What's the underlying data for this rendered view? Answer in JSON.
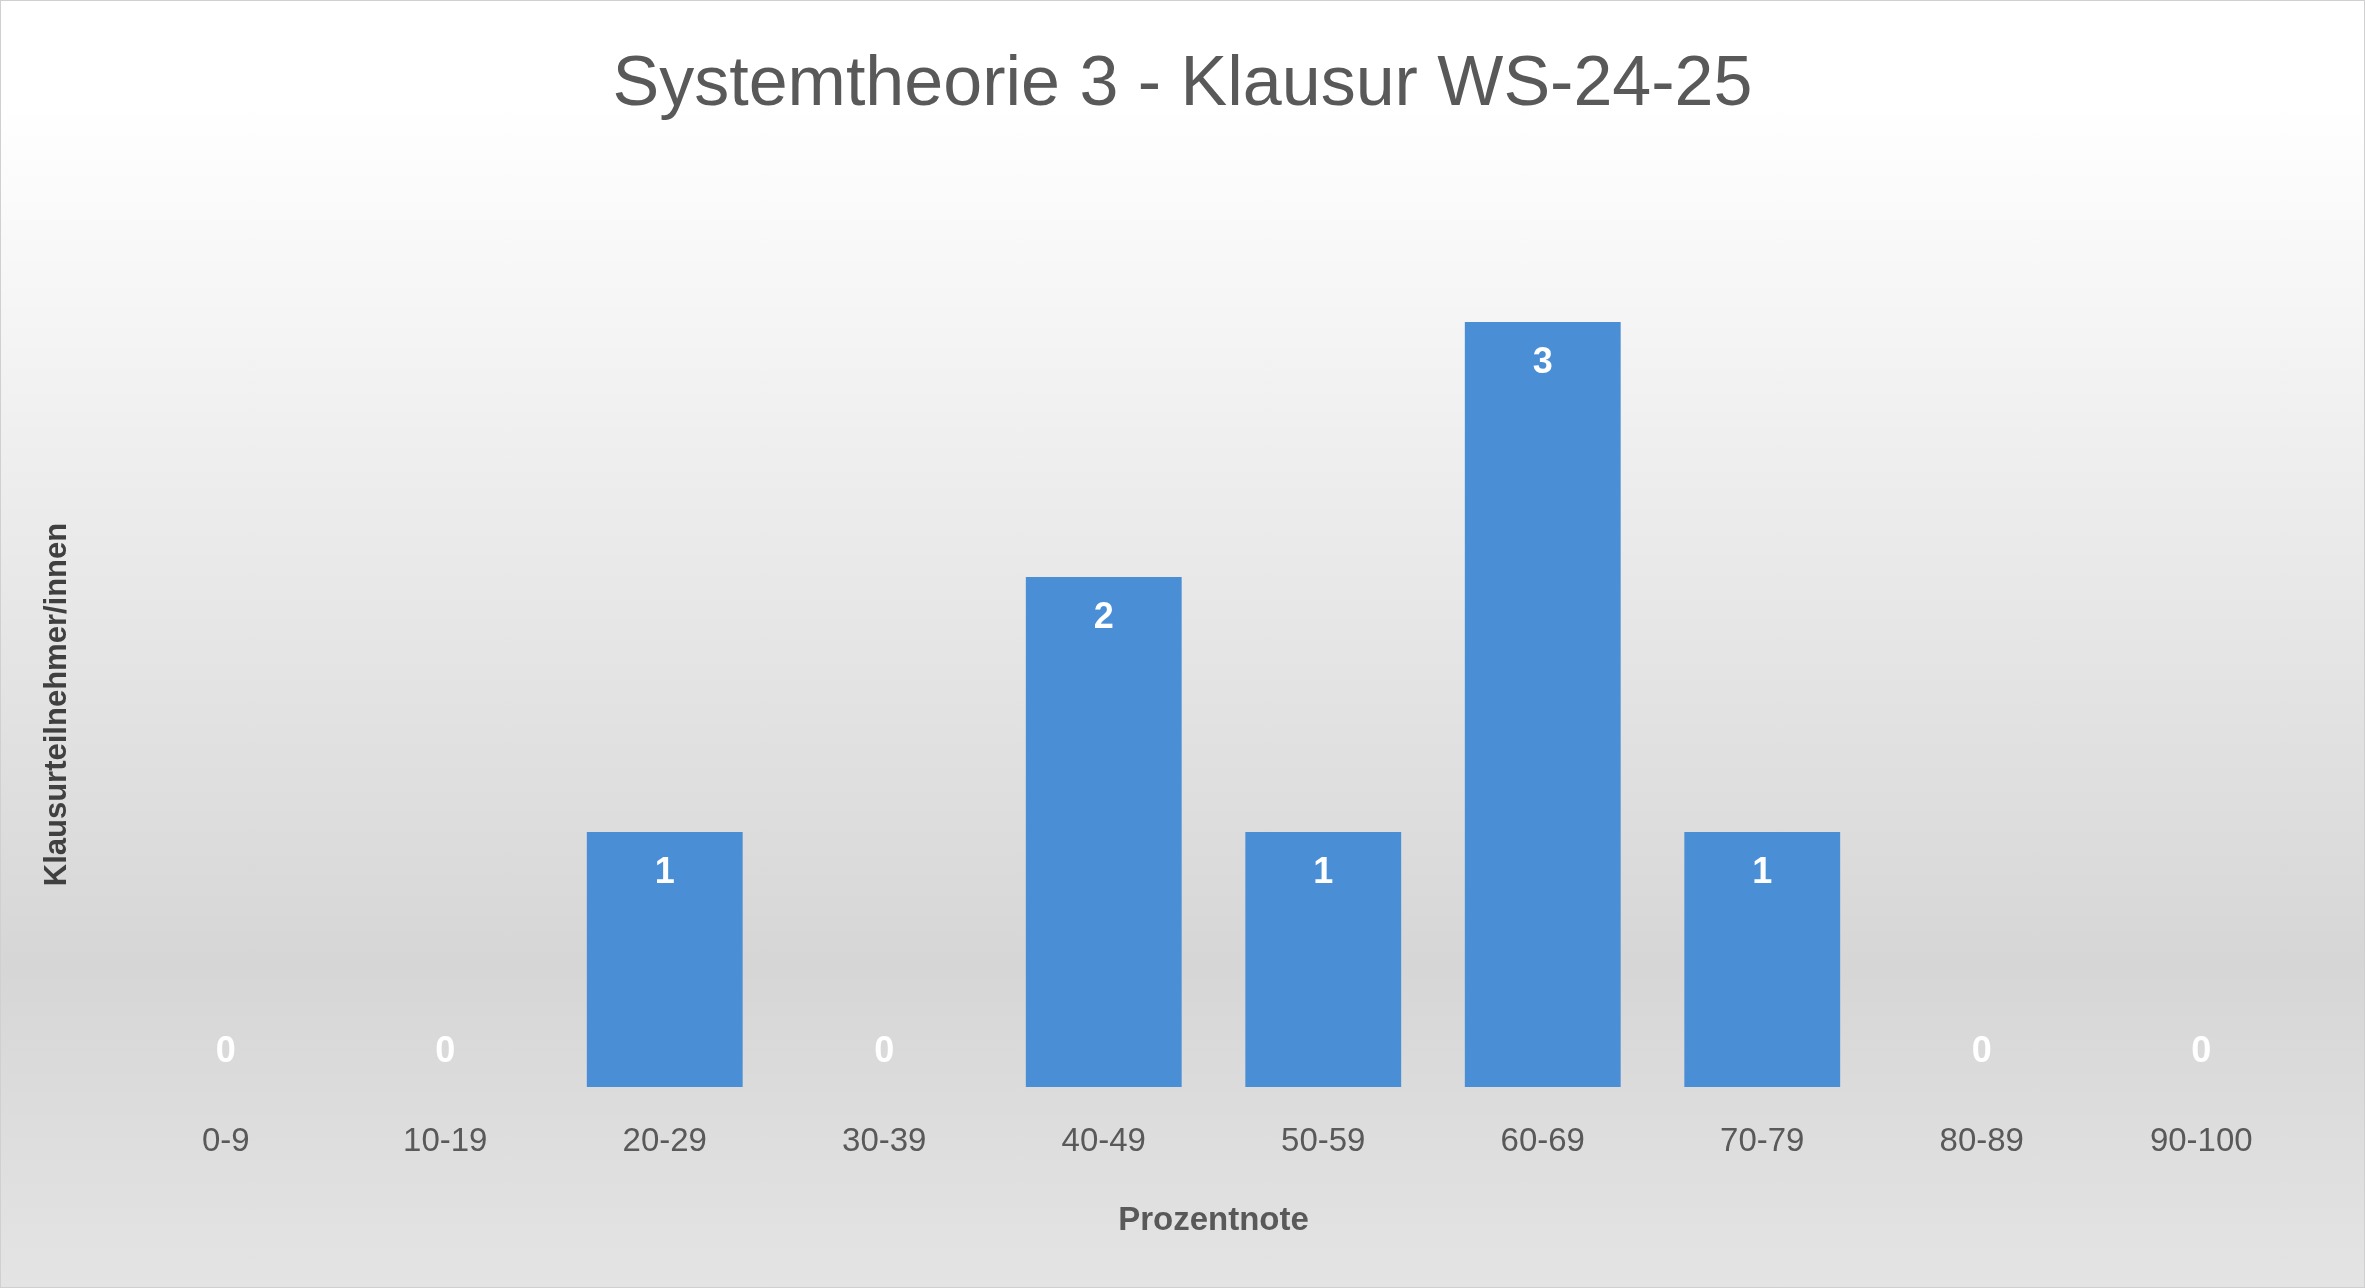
{
  "chart_data": {
    "type": "bar",
    "title": "Systemtheorie 3 - Klausur WS-24-25",
    "xlabel": "Prozentnote",
    "ylabel": "Klausurteilnehmer/innen",
    "categories": [
      "0-9",
      "10-19",
      "20-29",
      "30-39",
      "40-49",
      "50-59",
      "60-69",
      "70-79",
      "80-89",
      "90-100"
    ],
    "values": [
      0,
      0,
      1,
      0,
      2,
      1,
      3,
      1,
      0,
      0
    ],
    "color": "#4a8fd6",
    "data_labels": true
  }
}
